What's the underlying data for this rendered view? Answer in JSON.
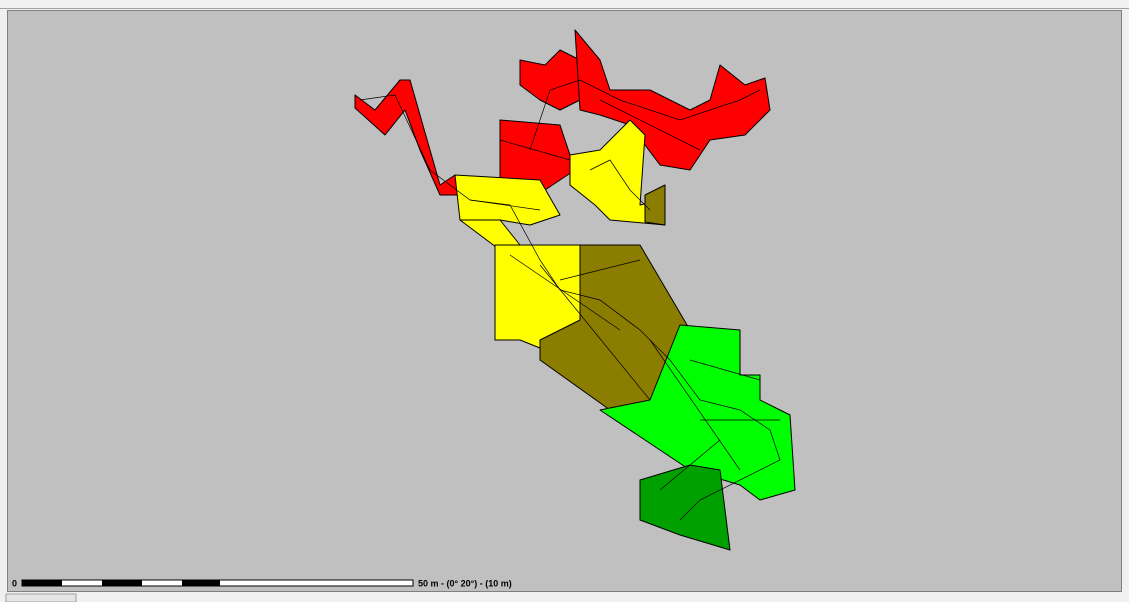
{
  "scale_bar": {
    "start_label": "0",
    "end_label": "50 m - (0° 20°) - (10 m)"
  }
}
